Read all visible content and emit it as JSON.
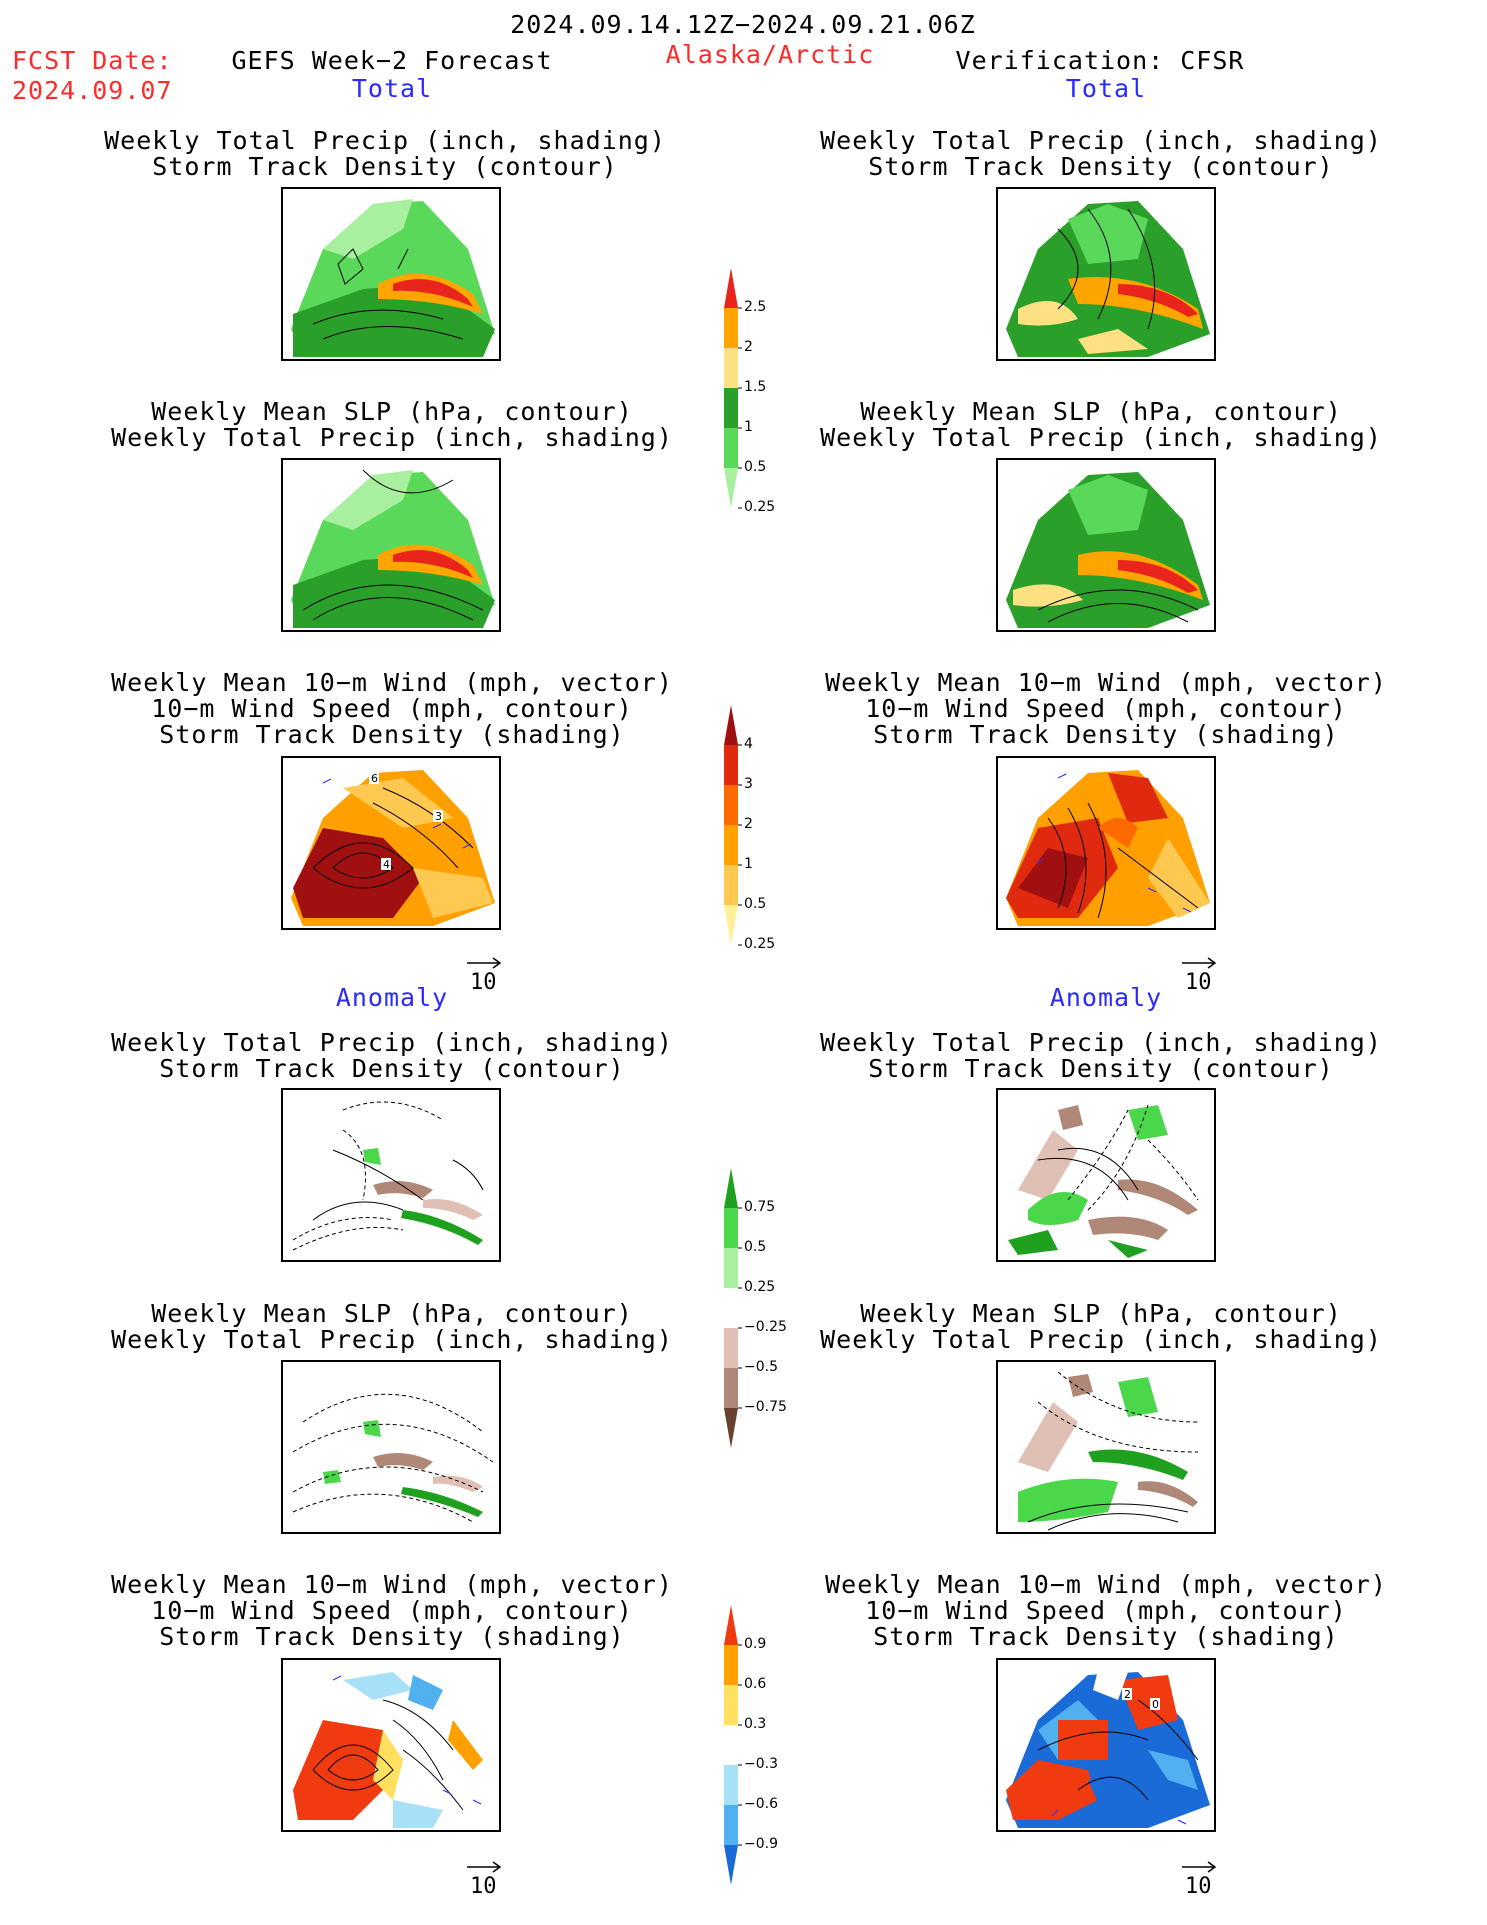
{
  "header": {
    "period": "2024.09.14.12Z−2024.09.21.06Z",
    "fcst_label": "FCST Date:",
    "fcst_date": "2024.09.07",
    "product": "GEFS Week−2 Forecast",
    "region": "Alaska/Arctic",
    "verification": "Verification: CFSR"
  },
  "sections": {
    "total_left": "Total",
    "total_right": "Total",
    "anom_left": "Anomaly",
    "anom_right": "Anomaly"
  },
  "titles": {
    "precip_storm": [
      "Weekly Total Precip (inch, shading)",
      "Storm Track Density (contour)"
    ],
    "slp_precip": [
      "Weekly Mean SLP (hPa, contour)",
      "Weekly Total Precip (inch, shading)"
    ],
    "wind": [
      "Weekly Mean 10−m Wind (mph, vector)",
      "10−m Wind Speed (mph, contour)",
      "Storm Track Density (shading)"
    ]
  },
  "vector_ref": "10",
  "colorbars": {
    "precip_total": {
      "ticks": [
        "2.5",
        "2",
        "1.5",
        "1",
        "0.5",
        "0.25"
      ],
      "colors": [
        "#e8241c",
        "#ffa500",
        "#ffe082",
        "#2aa02a",
        "#5ad85a",
        "#a8f0a0"
      ]
    },
    "storm_total": {
      "ticks": [
        "4",
        "3",
        "2",
        "1",
        "0.5",
        "0.25"
      ],
      "colors": [
        "#a01010",
        "#e02a10",
        "#ff6a00",
        "#ffa000",
        "#ffc850",
        "#fff09a"
      ]
    },
    "precip_anom": {
      "ticks": [
        "0.75",
        "0.5",
        "0.25",
        "−0.25",
        "−0.5",
        "−0.75"
      ],
      "colors": [
        "#1fa01f",
        "#4ad84a",
        "#a8f0a0",
        "#ffffff",
        "#e0c0b4",
        "#b08878",
        "#6a4030"
      ]
    },
    "storm_anom": {
      "ticks": [
        "0.9",
        "0.6",
        "0.3",
        "−0.3",
        "−0.6",
        "−0.9"
      ],
      "colors": [
        "#f03a10",
        "#ffa000",
        "#ffe060",
        "#ffffff",
        "#a8e0f8",
        "#50b0f0",
        "#1a6ad8"
      ]
    }
  },
  "map_labels": {
    "wind_total_left": [
      "6",
      "3",
      "4"
    ],
    "wind_anom_right": [
      "2",
      "0"
    ]
  }
}
